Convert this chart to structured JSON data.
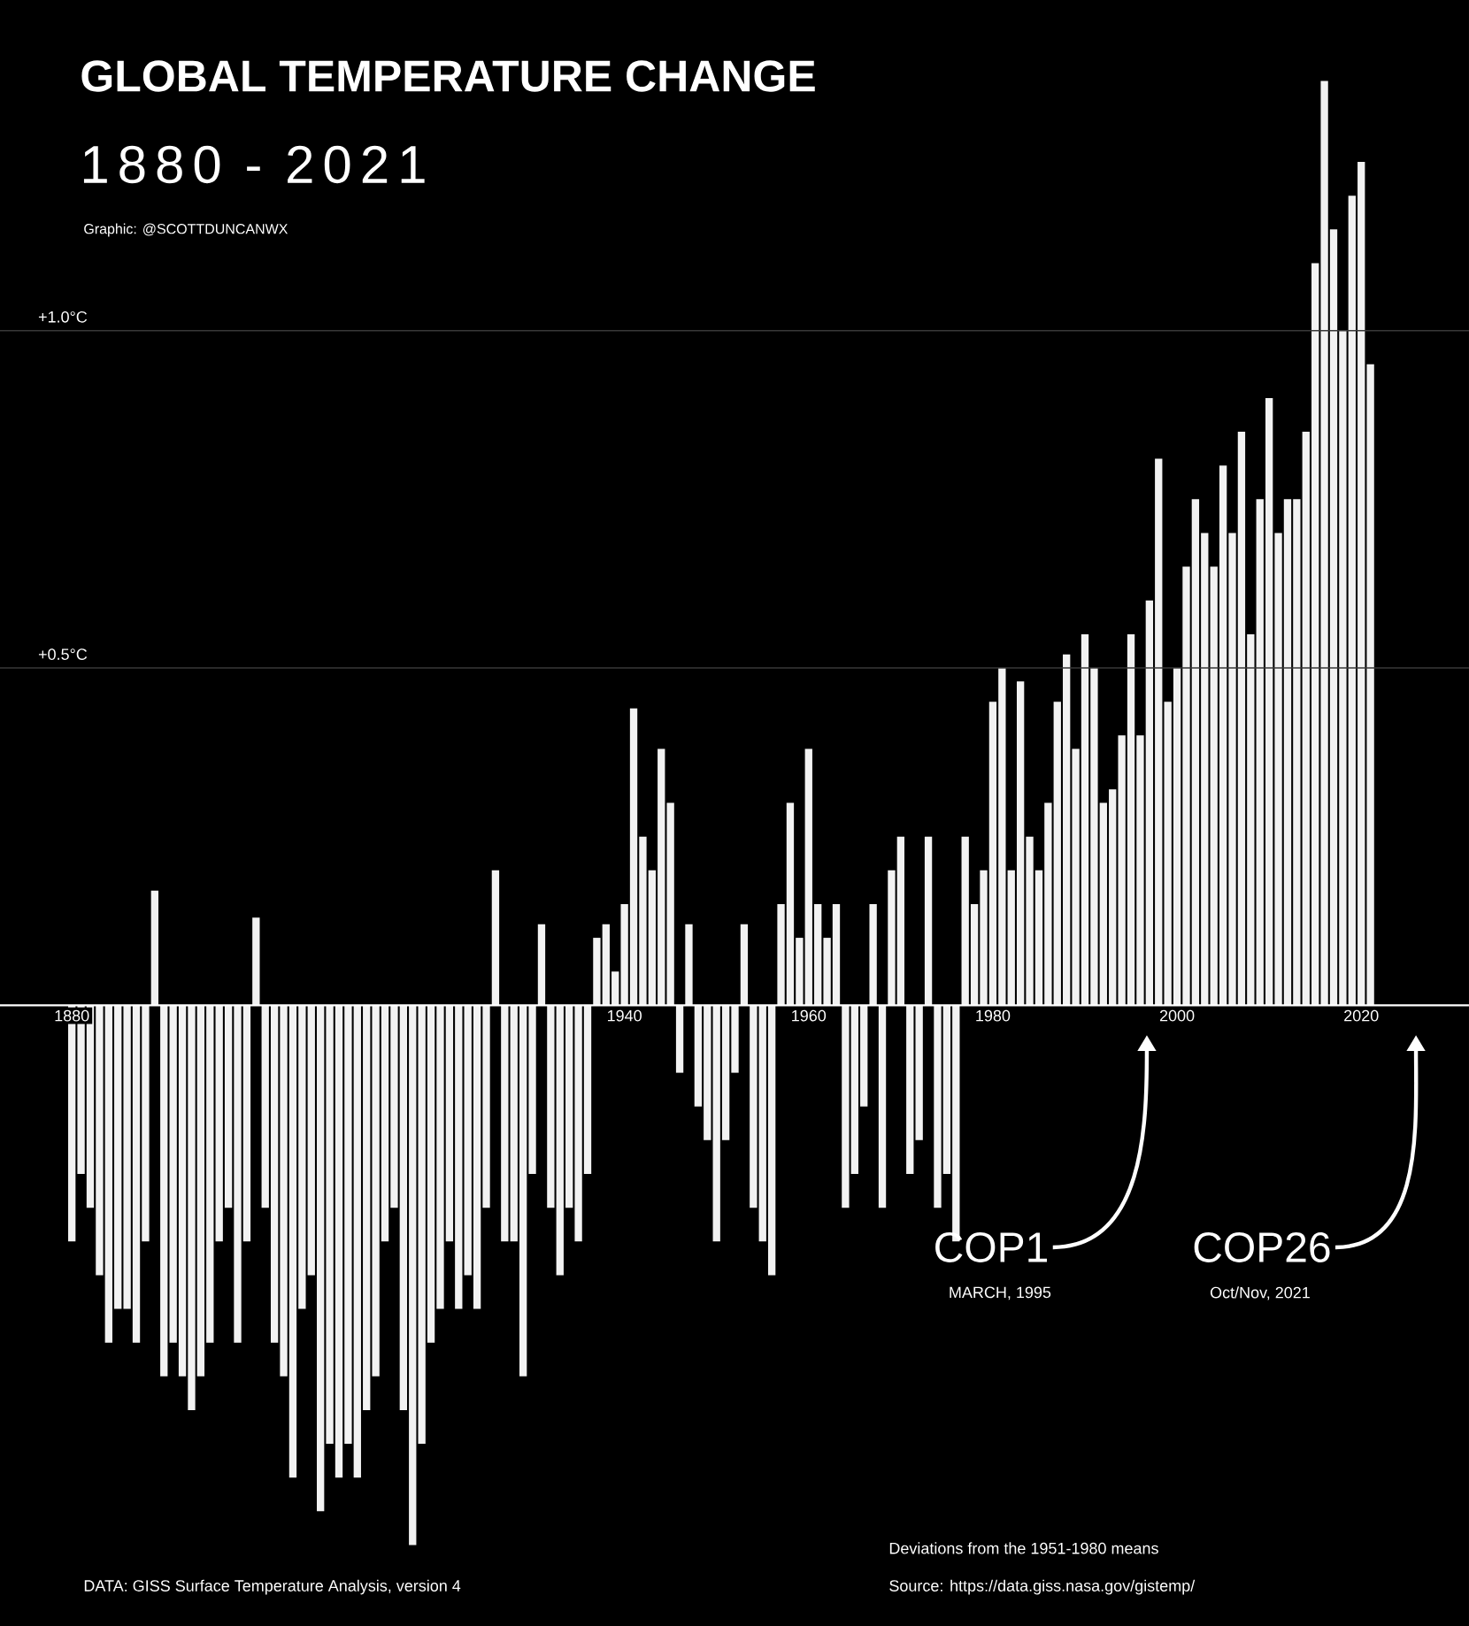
{
  "chart_data": {
    "type": "bar",
    "title": "GLOBAL TEMPERATURE CHANGE",
    "subtitle": "1880 - 2021",
    "x": [
      1880,
      1881,
      1882,
      1883,
      1884,
      1885,
      1886,
      1887,
      1888,
      1889,
      1890,
      1891,
      1892,
      1893,
      1894,
      1895,
      1896,
      1897,
      1898,
      1899,
      1900,
      1901,
      1902,
      1903,
      1904,
      1905,
      1906,
      1907,
      1908,
      1909,
      1910,
      1911,
      1912,
      1913,
      1914,
      1915,
      1916,
      1917,
      1918,
      1919,
      1920,
      1921,
      1922,
      1923,
      1924,
      1925,
      1926,
      1927,
      1928,
      1929,
      1930,
      1931,
      1932,
      1933,
      1934,
      1935,
      1936,
      1937,
      1938,
      1939,
      1940,
      1941,
      1942,
      1943,
      1944,
      1945,
      1946,
      1947,
      1948,
      1949,
      1950,
      1951,
      1952,
      1953,
      1954,
      1955,
      1956,
      1957,
      1958,
      1959,
      1960,
      1961,
      1962,
      1963,
      1964,
      1965,
      1966,
      1967,
      1968,
      1969,
      1970,
      1971,
      1972,
      1973,
      1974,
      1975,
      1976,
      1977,
      1978,
      1979,
      1980,
      1981,
      1982,
      1983,
      1984,
      1985,
      1986,
      1987,
      1988,
      1989,
      1990,
      1991,
      1992,
      1993,
      1994,
      1995,
      1996,
      1997,
      1998,
      1999,
      2000,
      2001,
      2002,
      2003,
      2004,
      2005,
      2006,
      2007,
      2008,
      2009,
      2010,
      2011,
      2012,
      2013,
      2014,
      2015,
      2016,
      2017,
      2018,
      2019,
      2020,
      2021
    ],
    "values": [
      -0.35,
      -0.25,
      -0.3,
      -0.4,
      -0.5,
      -0.45,
      -0.45,
      -0.5,
      -0.35,
      0.17,
      -0.55,
      -0.5,
      -0.55,
      -0.6,
      -0.55,
      -0.5,
      -0.35,
      -0.3,
      -0.5,
      -0.35,
      0.13,
      -0.3,
      -0.5,
      -0.55,
      -0.7,
      -0.45,
      -0.4,
      -0.75,
      -0.65,
      -0.7,
      -0.65,
      -0.7,
      -0.6,
      -0.55,
      -0.35,
      -0.3,
      -0.6,
      -0.8,
      -0.65,
      -0.5,
      -0.45,
      -0.35,
      -0.45,
      -0.4,
      -0.45,
      -0.3,
      0.2,
      -0.35,
      -0.35,
      -0.55,
      -0.25,
      0.12,
      -0.3,
      -0.4,
      -0.3,
      -0.35,
      -0.25,
      0.1,
      0.12,
      0.05,
      0.15,
      0.44,
      0.25,
      0.2,
      0.38,
      0.3,
      -0.1,
      0.12,
      -0.15,
      -0.2,
      -0.35,
      -0.2,
      -0.1,
      0.12,
      -0.3,
      -0.35,
      -0.4,
      0.15,
      0.3,
      0.1,
      0.38,
      0.15,
      0.1,
      0.15,
      -0.3,
      -0.25,
      -0.15,
      0.15,
      -0.3,
      0.2,
      0.25,
      -0.25,
      -0.2,
      0.25,
      -0.3,
      -0.25,
      -0.35,
      0.25,
      0.15,
      0.2,
      0.45,
      0.5,
      0.2,
      0.48,
      0.25,
      0.2,
      0.3,
      0.45,
      0.52,
      0.38,
      0.55,
      0.5,
      0.3,
      0.32,
      0.4,
      0.55,
      0.4,
      0.6,
      0.81,
      0.45,
      0.5,
      0.65,
      0.75,
      0.7,
      0.65,
      0.8,
      0.7,
      0.85,
      0.55,
      0.75,
      0.9,
      0.7,
      0.75,
      0.75,
      0.85,
      1.1,
      1.37,
      1.15,
      1.0,
      1.2,
      1.25,
      0.95
    ],
    "color": "#f2f2f2",
    "xlim": [
      1872.2,
      2031.7
    ],
    "ylim": [
      -0.92,
      1.49
    ],
    "xticks": [
      1880,
      1940,
      1960,
      1980,
      2000,
      2020
    ],
    "yticks": [
      {
        "value": 0.5,
        "label": "+0.5°C"
      },
      {
        "value": 1.0,
        "label": "+1.0°C"
      }
    ],
    "grid": "y",
    "annotations": [
      "Graphic: @SCOTTDUNCANWX",
      "COP1",
      "MARCH, 1995",
      "COP26",
      "Oct/Nov, 2021",
      "Deviations from the 1951-1980 means",
      "Source: https://data.giss.nasa.gov/gistemp/",
      "DATA: GISS Surface Temperature Analysis, version 4"
    ]
  }
}
